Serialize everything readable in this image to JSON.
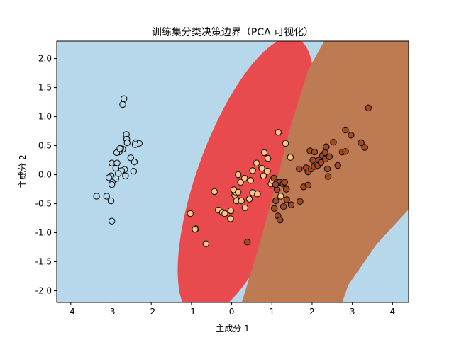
{
  "chart_data": {
    "type": "scatter",
    "title": "训练集分类决策边界（PCA 可视化）",
    "xlabel": "主成分 1",
    "ylabel": "主成分 2",
    "xlim": [
      -4.35,
      4.4
    ],
    "ylim": [
      -2.2,
      2.3
    ],
    "x_ticks": [
      -4,
      -3,
      -2,
      -1,
      0,
      1,
      2,
      3,
      4
    ],
    "y_ticks": [
      -2.0,
      -1.5,
      -1.0,
      -0.5,
      0.0,
      0.5,
      1.0,
      1.5,
      2.0
    ],
    "grid": false,
    "legend": "none",
    "colors": {
      "background_region": "#b7d8ea",
      "region_class_1": "#e84a4d",
      "region_class_2": "#be7a53",
      "point_class_0": "#b7d8ea",
      "point_class_1": "#fdc57f",
      "point_class_2": "#a54a1d",
      "point_edge": "#000000"
    },
    "decision_regions": [
      {
        "class": 1,
        "shape": "rotated-ellipse",
        "center": [
          0.35,
          -0.05
        ],
        "rx": 1.2,
        "ry": 2.55,
        "rotation_deg": 20
      },
      {
        "class": 2,
        "shape": "band",
        "boundary": [
          [
            0.25,
            -2.2
          ],
          [
            0.65,
            -1.3
          ],
          [
            1.05,
            -0.3
          ],
          [
            1.45,
            0.8
          ],
          [
            1.9,
            1.8
          ],
          [
            2.3,
            2.3
          ],
          [
            4.4,
            2.3
          ],
          [
            4.4,
            -0.6
          ],
          [
            3.6,
            -1.2
          ],
          [
            2.9,
            -1.9
          ],
          [
            2.75,
            -2.2
          ]
        ]
      }
    ],
    "series": [
      {
        "class": 0,
        "points": [
          [
            -2.68,
            1.31
          ],
          [
            -2.71,
            1.21
          ],
          [
            -2.62,
            0.69
          ],
          [
            -2.61,
            0.61
          ],
          [
            -2.39,
            0.55
          ],
          [
            -2.3,
            0.54
          ],
          [
            -2.71,
            0.44
          ],
          [
            -2.76,
            0.45
          ],
          [
            -2.8,
            0.39
          ],
          [
            -2.86,
            0.38
          ],
          [
            -2.6,
            0.55
          ],
          [
            -2.4,
            0.52
          ],
          [
            -2.51,
            0.29
          ],
          [
            -2.42,
            0.22
          ],
          [
            -2.98,
            0.2
          ],
          [
            -2.85,
            0.2
          ],
          [
            -2.88,
            0.11
          ],
          [
            -2.66,
            0.09
          ],
          [
            -2.74,
            0.07
          ],
          [
            -2.44,
            0.06
          ],
          [
            -3.0,
            -0.02
          ],
          [
            -2.82,
            0.02
          ],
          [
            -2.64,
            -0.02
          ],
          [
            -3.05,
            -0.05
          ],
          [
            -2.88,
            -0.07
          ],
          [
            -2.97,
            -0.13
          ],
          [
            -2.98,
            -0.17
          ],
          [
            -3.36,
            -0.37
          ],
          [
            -3.11,
            -0.37
          ],
          [
            -3.0,
            -0.45
          ],
          [
            -2.98,
            -0.8
          ],
          [
            -2.78,
            0.45
          ]
        ]
      },
      {
        "class": 1,
        "points": [
          [
            -1.03,
            -0.67
          ],
          [
            -0.89,
            -0.93
          ],
          [
            -0.91,
            -0.94
          ],
          [
            -0.64,
            -1.19
          ],
          [
            -0.43,
            -0.29
          ],
          [
            -0.33,
            -0.61
          ],
          [
            -0.23,
            -0.65
          ],
          [
            -0.17,
            -0.67
          ],
          [
            -0.02,
            -0.62
          ],
          [
            -0.03,
            -0.76
          ],
          [
            0.08,
            -0.35
          ],
          [
            0.1,
            -0.3
          ],
          [
            0.05,
            -0.26
          ],
          [
            0.12,
            -0.45
          ],
          [
            0.16,
            -0.3
          ],
          [
            0.16,
            -0.0
          ],
          [
            0.22,
            -0.13
          ],
          [
            0.24,
            -0.45
          ],
          [
            0.33,
            -0.57
          ],
          [
            0.32,
            -0.06
          ],
          [
            0.44,
            -0.42
          ],
          [
            0.47,
            -0.1
          ],
          [
            0.52,
            0.07
          ],
          [
            0.52,
            -0.31
          ],
          [
            0.62,
            0.2
          ],
          [
            0.64,
            -0.33
          ],
          [
            0.75,
            0.11
          ],
          [
            0.79,
            -0.02
          ],
          [
            0.81,
            0.38
          ],
          [
            0.9,
            0.28
          ],
          [
            0.89,
            0.06
          ],
          [
            0.98,
            -0.16
          ],
          [
            1.16,
            0.73
          ],
          [
            1.22,
            -0.37
          ],
          [
            1.34,
            0.54
          ],
          [
            1.46,
            0.3
          ],
          [
            1.01,
            -0.1
          ]
        ]
      },
      {
        "class": 2,
        "points": [
          [
            0.39,
            -1.16
          ],
          [
            1.06,
            -0.58
          ],
          [
            1.15,
            -0.71
          ],
          [
            1.2,
            -0.78
          ],
          [
            1.29,
            -0.55
          ],
          [
            1.48,
            -0.52
          ],
          [
            1.7,
            -0.46
          ],
          [
            1.05,
            -0.06
          ],
          [
            1.12,
            -0.13
          ],
          [
            1.13,
            -0.26
          ],
          [
            1.2,
            -0.13
          ],
          [
            1.28,
            -0.16
          ],
          [
            1.32,
            -0.13
          ],
          [
            1.09,
            -0.17
          ],
          [
            1.1,
            -0.45
          ],
          [
            1.37,
            -0.43
          ],
          [
            1.36,
            -0.25
          ],
          [
            1.79,
            -0.21
          ],
          [
            1.68,
            0.1
          ],
          [
            1.85,
            0.12
          ],
          [
            1.9,
            0.05
          ],
          [
            1.9,
            -0.18
          ],
          [
            2.02,
            0.25
          ],
          [
            1.98,
            0.1
          ],
          [
            2.05,
            0.14
          ],
          [
            2.14,
            0.16
          ],
          [
            2.17,
            0.25
          ],
          [
            1.95,
            0.41
          ],
          [
            2.06,
            0.39
          ],
          [
            2.26,
            0.33
          ],
          [
            2.35,
            0.48
          ],
          [
            2.33,
            0.27
          ],
          [
            2.32,
            0.38
          ],
          [
            2.43,
            0.31
          ],
          [
            2.4,
            -0.03
          ],
          [
            2.22,
            0.21
          ],
          [
            2.53,
            0.56
          ],
          [
            2.64,
            0.16
          ],
          [
            2.75,
            0.39
          ],
          [
            2.83,
            0.4
          ],
          [
            2.83,
            0.77
          ],
          [
            2.97,
            0.68
          ],
          [
            3.22,
            0.55
          ],
          [
            3.31,
            0.47
          ],
          [
            3.4,
            1.15
          ],
          [
            2.38,
            0.1
          ]
        ]
      }
    ]
  }
}
